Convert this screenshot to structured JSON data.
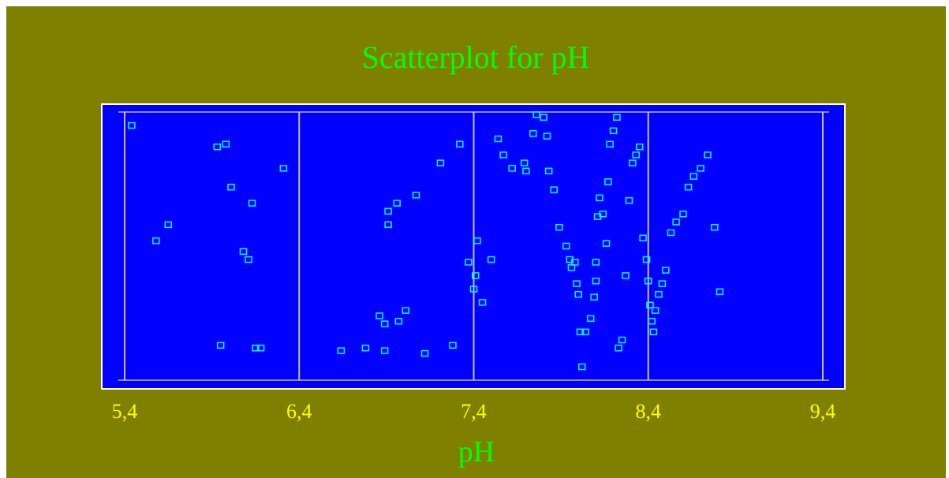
{
  "chart_data": {
    "type": "scatter",
    "title": "Scatterplot for pH",
    "xlabel": "pH",
    "ylabel": "",
    "xlim": [
      5.4,
      9.4
    ],
    "xticks": [
      "5,4",
      "6,4",
      "7,4",
      "8,4",
      "9,4"
    ],
    "x_tick_values": [
      5.4,
      6.4,
      7.4,
      8.4,
      9.4
    ],
    "grid": true,
    "points": [
      [
        5.44,
        0.95
      ],
      [
        5.58,
        0.52
      ],
      [
        5.65,
        0.58
      ],
      [
        5.93,
        0.87
      ],
      [
        5.98,
        0.88
      ],
      [
        5.95,
        0.13
      ],
      [
        6.01,
        0.72
      ],
      [
        6.08,
        0.48
      ],
      [
        6.15,
        0.12
      ],
      [
        6.18,
        0.12
      ],
      [
        6.13,
        0.66
      ],
      [
        6.11,
        0.45
      ],
      [
        6.31,
        0.79
      ],
      [
        6.64,
        0.11
      ],
      [
        6.78,
        0.12
      ],
      [
        6.89,
        0.11
      ],
      [
        6.89,
        0.21
      ],
      [
        6.86,
        0.24
      ],
      [
        7.01,
        0.26
      ],
      [
        6.91,
        0.58
      ],
      [
        6.91,
        0.63
      ],
      [
        6.96,
        0.66
      ],
      [
        6.97,
        0.22
      ],
      [
        7.07,
        0.69
      ],
      [
        7.12,
        0.1
      ],
      [
        7.21,
        0.81
      ],
      [
        7.28,
        0.13
      ],
      [
        7.32,
        0.88
      ],
      [
        7.37,
        0.44
      ],
      [
        7.4,
        0.34
      ],
      [
        7.41,
        0.39
      ],
      [
        7.42,
        0.52
      ],
      [
        7.45,
        0.29
      ],
      [
        7.5,
        0.45
      ],
      [
        7.54,
        0.9
      ],
      [
        7.57,
        0.84
      ],
      [
        7.62,
        0.79
      ],
      [
        7.69,
        0.81
      ],
      [
        7.7,
        0.78
      ],
      [
        7.74,
        0.92
      ],
      [
        7.76,
        0.99
      ],
      [
        7.8,
        0.98
      ],
      [
        7.82,
        0.91
      ],
      [
        7.83,
        0.78
      ],
      [
        7.86,
        0.71
      ],
      [
        7.89,
        0.57
      ],
      [
        7.93,
        0.5
      ],
      [
        7.95,
        0.45
      ],
      [
        7.96,
        0.42
      ],
      [
        7.98,
        0.44
      ],
      [
        7.99,
        0.36
      ],
      [
        8.0,
        0.32
      ],
      [
        8.01,
        0.18
      ],
      [
        8.02,
        0.05
      ],
      [
        8.04,
        0.18
      ],
      [
        8.07,
        0.23
      ],
      [
        8.09,
        0.31
      ],
      [
        8.1,
        0.37
      ],
      [
        8.1,
        0.44
      ],
      [
        8.11,
        0.61
      ],
      [
        8.12,
        0.68
      ],
      [
        8.14,
        0.62
      ],
      [
        8.16,
        0.51
      ],
      [
        8.17,
        0.74
      ],
      [
        8.18,
        0.88
      ],
      [
        8.2,
        0.93
      ],
      [
        8.22,
        0.98
      ],
      [
        8.23,
        0.12
      ],
      [
        8.25,
        0.15
      ],
      [
        8.27,
        0.39
      ],
      [
        8.29,
        0.67
      ],
      [
        8.31,
        0.81
      ],
      [
        8.33,
        0.84
      ],
      [
        8.35,
        0.87
      ],
      [
        8.37,
        0.53
      ],
      [
        8.39,
        0.45
      ],
      [
        8.4,
        0.37
      ],
      [
        8.41,
        0.28
      ],
      [
        8.42,
        0.22
      ],
      [
        8.43,
        0.18
      ],
      [
        8.44,
        0.26
      ],
      [
        8.46,
        0.32
      ],
      [
        8.48,
        0.36
      ],
      [
        8.5,
        0.41
      ],
      [
        8.53,
        0.55
      ],
      [
        8.56,
        0.59
      ],
      [
        8.6,
        0.62
      ],
      [
        8.63,
        0.72
      ],
      [
        8.66,
        0.76
      ],
      [
        8.7,
        0.79
      ],
      [
        8.74,
        0.84
      ],
      [
        8.78,
        0.57
      ],
      [
        8.81,
        0.33
      ]
    ]
  },
  "colors": {
    "frame_background": "#808000",
    "plot_background": "#0000ff",
    "plot_border": "#ffffff",
    "grid": "#c0c0c0",
    "marker": "#00ffff",
    "title": "#00ff00",
    "tick_labels": "#ffff00",
    "xlabel": "#00ff00"
  }
}
